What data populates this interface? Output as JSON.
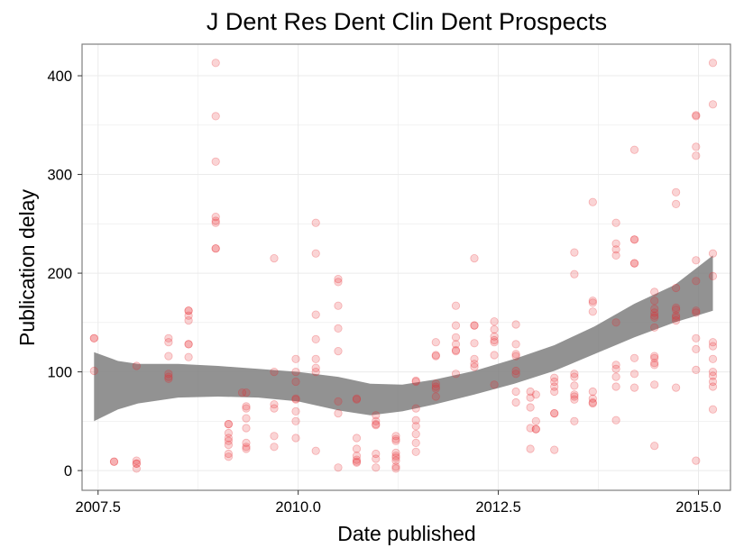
{
  "chart_data": {
    "type": "scatter",
    "title": "J Dent Res Dent Clin Dent Prospects",
    "xlabel": "Date published",
    "ylabel": "Publication delay",
    "xlim": [
      2007.3,
      2015.4
    ],
    "ylim": [
      -20,
      432
    ],
    "xticks": [
      2007.5,
      2010.0,
      2012.5,
      2015.0
    ],
    "xtick_labels": [
      "2007.5",
      "2010.0",
      "2012.5",
      "2015.0"
    ],
    "yticks": [
      0,
      100,
      200,
      300,
      400
    ],
    "ytick_labels": [
      "0",
      "100",
      "200",
      "300",
      "400"
    ],
    "grid": true,
    "legend": "none",
    "colors": {
      "points": "#e8262b",
      "smooth_band": "#7f7f7f",
      "frame": "#7f7f7f",
      "grid": "#ebebeb"
    },
    "points": [
      [
        2007.45,
        134
      ],
      [
        2007.45,
        134
      ],
      [
        2007.45,
        101
      ],
      [
        2007.7,
        9
      ],
      [
        2007.7,
        9
      ],
      [
        2007.98,
        106
      ],
      [
        2007.98,
        10
      ],
      [
        2007.98,
        7
      ],
      [
        2007.98,
        7
      ],
      [
        2007.98,
        2
      ],
      [
        2008.38,
        134
      ],
      [
        2008.38,
        130
      ],
      [
        2008.38,
        116
      ],
      [
        2008.38,
        98
      ],
      [
        2008.38,
        95
      ],
      [
        2008.38,
        93
      ],
      [
        2008.63,
        162
      ],
      [
        2008.63,
        162
      ],
      [
        2008.63,
        157
      ],
      [
        2008.63,
        152
      ],
      [
        2008.63,
        128
      ],
      [
        2008.63,
        128
      ],
      [
        2008.63,
        115
      ],
      [
        2008.97,
        413
      ],
      [
        2008.97,
        359
      ],
      [
        2008.97,
        313
      ],
      [
        2008.97,
        257
      ],
      [
        2008.97,
        253
      ],
      [
        2008.97,
        251
      ],
      [
        2008.97,
        225
      ],
      [
        2008.97,
        225
      ],
      [
        2009.35,
        79
      ],
      [
        2009.35,
        65
      ],
      [
        2009.35,
        63
      ],
      [
        2009.35,
        53
      ],
      [
        2009.35,
        43
      ],
      [
        2009.35,
        28
      ],
      [
        2009.35,
        24
      ],
      [
        2009.35,
        22
      ],
      [
        2009.3,
        79
      ],
      [
        2009.13,
        47
      ],
      [
        2009.13,
        47
      ],
      [
        2009.13,
        38
      ],
      [
        2009.13,
        33
      ],
      [
        2009.13,
        30
      ],
      [
        2009.13,
        26
      ],
      [
        2009.13,
        17
      ],
      [
        2009.13,
        14
      ],
      [
        2009.7,
        215
      ],
      [
        2009.7,
        100
      ],
      [
        2009.7,
        67
      ],
      [
        2009.7,
        63
      ],
      [
        2009.7,
        35
      ],
      [
        2009.7,
        24
      ],
      [
        2009.97,
        113
      ],
      [
        2009.97,
        100
      ],
      [
        2009.97,
        90
      ],
      [
        2009.97,
        73
      ],
      [
        2009.97,
        72
      ],
      [
        2009.97,
        60
      ],
      [
        2009.97,
        50
      ],
      [
        2009.97,
        33
      ],
      [
        2010.22,
        251
      ],
      [
        2010.22,
        220
      ],
      [
        2010.22,
        158
      ],
      [
        2010.22,
        133
      ],
      [
        2010.22,
        113
      ],
      [
        2010.22,
        104
      ],
      [
        2010.22,
        100
      ],
      [
        2010.22,
        20
      ],
      [
        2010.5,
        194
      ],
      [
        2010.5,
        191
      ],
      [
        2010.5,
        167
      ],
      [
        2010.5,
        144
      ],
      [
        2010.5,
        121
      ],
      [
        2010.5,
        70
      ],
      [
        2010.5,
        58
      ],
      [
        2010.5,
        3
      ],
      [
        2010.73,
        73
      ],
      [
        2010.73,
        72
      ],
      [
        2010.73,
        33
      ],
      [
        2010.73,
        22
      ],
      [
        2010.73,
        15
      ],
      [
        2010.73,
        11
      ],
      [
        2010.73,
        9
      ],
      [
        2010.73,
        8
      ],
      [
        2010.97,
        56
      ],
      [
        2010.97,
        50
      ],
      [
        2010.97,
        47
      ],
      [
        2010.97,
        46
      ],
      [
        2010.97,
        17
      ],
      [
        2010.97,
        12
      ],
      [
        2010.97,
        3
      ],
      [
        2011.22,
        35
      ],
      [
        2011.22,
        32
      ],
      [
        2011.22,
        30
      ],
      [
        2011.22,
        18
      ],
      [
        2011.22,
        15
      ],
      [
        2011.22,
        13
      ],
      [
        2011.22,
        10
      ],
      [
        2011.22,
        4
      ],
      [
        2011.22,
        2
      ],
      [
        2011.47,
        91
      ],
      [
        2011.47,
        90
      ],
      [
        2011.47,
        63
      ],
      [
        2011.47,
        51
      ],
      [
        2011.47,
        45
      ],
      [
        2011.47,
        37
      ],
      [
        2011.47,
        28
      ],
      [
        2011.47,
        19
      ],
      [
        2011.72,
        130
      ],
      [
        2011.72,
        117
      ],
      [
        2011.72,
        116
      ],
      [
        2011.72,
        88
      ],
      [
        2011.72,
        85
      ],
      [
        2011.72,
        83
      ],
      [
        2011.72,
        75
      ],
      [
        2011.97,
        167
      ],
      [
        2011.97,
        147
      ],
      [
        2011.97,
        135
      ],
      [
        2011.97,
        128
      ],
      [
        2011.97,
        122
      ],
      [
        2011.97,
        121
      ],
      [
        2011.97,
        98
      ],
      [
        2012.2,
        215
      ],
      [
        2012.2,
        147
      ],
      [
        2012.2,
        147
      ],
      [
        2012.2,
        129
      ],
      [
        2012.2,
        113
      ],
      [
        2012.2,
        108
      ],
      [
        2012.2,
        105
      ],
      [
        2012.45,
        151
      ],
      [
        2012.45,
        143
      ],
      [
        2012.45,
        136
      ],
      [
        2012.45,
        132
      ],
      [
        2012.45,
        130
      ],
      [
        2012.45,
        117
      ],
      [
        2012.45,
        87
      ],
      [
        2012.72,
        148
      ],
      [
        2012.72,
        128
      ],
      [
        2012.72,
        118
      ],
      [
        2012.72,
        116
      ],
      [
        2012.72,
        101
      ],
      [
        2012.72,
        98
      ],
      [
        2012.72,
        80
      ],
      [
        2012.72,
        69
      ],
      [
        2012.9,
        80
      ],
      [
        2012.9,
        74
      ],
      [
        2012.9,
        64
      ],
      [
        2012.9,
        43
      ],
      [
        2012.9,
        22
      ],
      [
        2012.97,
        77
      ],
      [
        2012.97,
        50
      ],
      [
        2012.97,
        42
      ],
      [
        2012.97,
        42
      ],
      [
        2013.2,
        94
      ],
      [
        2013.2,
        90
      ],
      [
        2013.2,
        85
      ],
      [
        2013.2,
        80
      ],
      [
        2013.2,
        58
      ],
      [
        2013.2,
        58
      ],
      [
        2013.2,
        21
      ],
      [
        2013.45,
        221
      ],
      [
        2013.45,
        199
      ],
      [
        2013.45,
        98
      ],
      [
        2013.45,
        95
      ],
      [
        2013.45,
        86
      ],
      [
        2013.45,
        77
      ],
      [
        2013.45,
        75
      ],
      [
        2013.45,
        72
      ],
      [
        2013.45,
        50
      ],
      [
        2013.68,
        272
      ],
      [
        2013.68,
        172
      ],
      [
        2013.68,
        170
      ],
      [
        2013.68,
        161
      ],
      [
        2013.68,
        80
      ],
      [
        2013.68,
        73
      ],
      [
        2013.68,
        69
      ],
      [
        2013.68,
        68
      ],
      [
        2013.97,
        251
      ],
      [
        2013.97,
        230
      ],
      [
        2013.97,
        224
      ],
      [
        2013.97,
        218
      ],
      [
        2013.97,
        150
      ],
      [
        2013.97,
        107
      ],
      [
        2013.97,
        103
      ],
      [
        2013.97,
        95
      ],
      [
        2013.97,
        85
      ],
      [
        2013.97,
        51
      ],
      [
        2014.2,
        325
      ],
      [
        2014.2,
        234
      ],
      [
        2014.2,
        234
      ],
      [
        2014.2,
        210
      ],
      [
        2014.2,
        210
      ],
      [
        2014.2,
        114
      ],
      [
        2014.2,
        98
      ],
      [
        2014.2,
        84
      ],
      [
        2014.45,
        181
      ],
      [
        2014.45,
        172
      ],
      [
        2014.45,
        164
      ],
      [
        2014.45,
        160
      ],
      [
        2014.45,
        157
      ],
      [
        2014.45,
        155
      ],
      [
        2014.45,
        145
      ],
      [
        2014.45,
        116
      ],
      [
        2014.45,
        114
      ],
      [
        2014.45,
        109
      ],
      [
        2014.45,
        107
      ],
      [
        2014.45,
        87
      ],
      [
        2014.45,
        25
      ],
      [
        2014.72,
        282
      ],
      [
        2014.72,
        270
      ],
      [
        2014.72,
        185
      ],
      [
        2014.72,
        165
      ],
      [
        2014.72,
        163
      ],
      [
        2014.72,
        157
      ],
      [
        2014.72,
        155
      ],
      [
        2014.72,
        152
      ],
      [
        2014.72,
        84
      ],
      [
        2014.97,
        360
      ],
      [
        2014.97,
        359
      ],
      [
        2014.97,
        328
      ],
      [
        2014.97,
        319
      ],
      [
        2014.97,
        213
      ],
      [
        2014.97,
        192
      ],
      [
        2014.97,
        162
      ],
      [
        2014.97,
        160
      ],
      [
        2014.97,
        134
      ],
      [
        2014.97,
        123
      ],
      [
        2014.97,
        102
      ],
      [
        2014.97,
        10
      ],
      [
        2015.18,
        413
      ],
      [
        2015.18,
        371
      ],
      [
        2015.18,
        220
      ],
      [
        2015.18,
        197
      ],
      [
        2015.18,
        130
      ],
      [
        2015.18,
        126
      ],
      [
        2015.18,
        113
      ],
      [
        2015.18,
        100
      ],
      [
        2015.18,
        96
      ],
      [
        2015.18,
        90
      ],
      [
        2015.18,
        85
      ],
      [
        2015.18,
        62
      ]
    ],
    "smooth_band": {
      "x": [
        2007.45,
        2007.75,
        2008.0,
        2008.5,
        2009.0,
        2009.5,
        2010.0,
        2010.5,
        2010.9,
        2011.3,
        2011.7,
        2012.2,
        2012.7,
        2013.2,
        2013.7,
        2014.2,
        2014.7,
        2015.18
      ],
      "lower": [
        50,
        62,
        68,
        74,
        75,
        74,
        70,
        61,
        56,
        60,
        67,
        77,
        88,
        101,
        118,
        135,
        150,
        162
      ],
      "upper": [
        120,
        111,
        108,
        108,
        106,
        103,
        100,
        95,
        88,
        87,
        92,
        101,
        113,
        127,
        146,
        169,
        188,
        218
      ]
    }
  }
}
